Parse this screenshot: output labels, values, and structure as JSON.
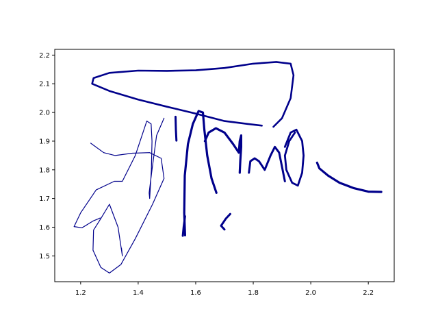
{
  "chart_data": {
    "type": "line",
    "title": "",
    "xlabel": "",
    "ylabel": "",
    "xlim": [
      1.11,
      2.29
    ],
    "ylim": [
      1.41,
      2.22
    ],
    "grid": false,
    "legend": "none",
    "x_ticks": [
      "1.2",
      "1.4",
      "1.6",
      "1.8",
      "2.0",
      "2.2"
    ],
    "x_tick_values": [
      1.2,
      1.4,
      1.6,
      1.8,
      2.0,
      2.2
    ],
    "y_ticks": [
      "1.5",
      "1.6",
      "1.7",
      "1.8",
      "1.9",
      "2.0",
      "2.1",
      "2.2"
    ],
    "y_tick_values": [
      1.5,
      1.6,
      1.7,
      1.8,
      1.9,
      2.0,
      2.1,
      2.2
    ],
    "color": "#00008b",
    "series": [
      {
        "id": "left-loop",
        "width": 1.2,
        "points": [
          [
            1.268,
            1.632
          ],
          [
            1.244,
            1.622
          ],
          [
            1.205,
            1.598
          ],
          [
            1.177,
            1.602
          ],
          [
            1.2,
            1.65
          ],
          [
            1.254,
            1.73
          ],
          [
            1.317,
            1.76
          ],
          [
            1.345,
            1.76
          ],
          [
            1.39,
            1.85
          ],
          [
            1.43,
            1.97
          ],
          [
            1.445,
            1.96
          ],
          [
            1.448,
            1.9
          ],
          [
            1.446,
            1.8
          ],
          [
            1.44,
            1.7
          ],
          [
            1.438,
            1.72
          ],
          [
            1.448,
            1.8
          ],
          [
            1.464,
            1.92
          ],
          [
            1.49,
            1.98
          ]
        ]
      },
      {
        "id": "left-cross",
        "width": 1.2,
        "points": [
          [
            1.235,
            1.893
          ],
          [
            1.28,
            1.86
          ],
          [
            1.32,
            1.85
          ],
          [
            1.38,
            1.858
          ],
          [
            1.44,
            1.86
          ],
          [
            1.48,
            1.84
          ],
          [
            1.49,
            1.77
          ],
          [
            1.45,
            1.68
          ],
          [
            1.39,
            1.56
          ],
          [
            1.34,
            1.47
          ],
          [
            1.3,
            1.44
          ],
          [
            1.27,
            1.46
          ],
          [
            1.243,
            1.52
          ],
          [
            1.245,
            1.59
          ],
          [
            1.27,
            1.63
          ],
          [
            1.3,
            1.68
          ],
          [
            1.33,
            1.6
          ],
          [
            1.345,
            1.5
          ],
          [
            1.342,
            1.527
          ]
        ]
      },
      {
        "id": "top-swash",
        "width": 2.6,
        "points": [
          [
            1.83,
            1.954
          ],
          [
            1.78,
            1.96
          ],
          [
            1.7,
            1.97
          ],
          [
            1.6,
            1.996
          ],
          [
            1.5,
            2.02
          ],
          [
            1.4,
            2.045
          ],
          [
            1.3,
            2.075
          ],
          [
            1.24,
            2.1
          ],
          [
            1.245,
            2.12
          ],
          [
            1.3,
            2.138
          ],
          [
            1.4,
            2.146
          ],
          [
            1.5,
            2.145
          ],
          [
            1.6,
            2.147
          ],
          [
            1.7,
            2.155
          ],
          [
            1.8,
            2.17
          ],
          [
            1.88,
            2.176
          ],
          [
            1.93,
            2.17
          ],
          [
            1.94,
            2.13
          ],
          [
            1.93,
            2.05
          ],
          [
            1.9,
            1.98
          ],
          [
            1.87,
            1.95
          ]
        ]
      },
      {
        "id": "tall-stroke",
        "width": 3.2,
        "points": [
          [
            1.563,
            1.572
          ],
          [
            1.56,
            1.65
          ],
          [
            1.562,
            1.78
          ],
          [
            1.573,
            1.89
          ],
          [
            1.59,
            1.96
          ],
          [
            1.61,
            2.005
          ],
          [
            1.625,
            2.0
          ],
          [
            1.63,
            1.94
          ],
          [
            1.64,
            1.85
          ],
          [
            1.655,
            1.77
          ],
          [
            1.672,
            1.72
          ]
        ]
      },
      {
        "id": "m-loops",
        "width": 3.2,
        "points": [
          [
            1.632,
            1.9
          ],
          [
            1.645,
            1.93
          ],
          [
            1.67,
            1.945
          ],
          [
            1.7,
            1.93
          ],
          [
            1.73,
            1.89
          ],
          [
            1.75,
            1.86
          ],
          [
            1.753,
            1.9
          ],
          [
            1.758,
            1.92
          ],
          [
            1.758,
            1.88
          ],
          [
            1.755,
            1.83
          ],
          [
            1.753,
            1.79
          ]
        ]
      },
      {
        "id": "n-loop",
        "width": 3.0,
        "points": [
          [
            1.785,
            1.79
          ],
          [
            1.79,
            1.83
          ],
          [
            1.805,
            1.84
          ],
          [
            1.82,
            1.83
          ],
          [
            1.84,
            1.8
          ],
          [
            1.86,
            1.85
          ],
          [
            1.875,
            1.88
          ],
          [
            1.89,
            1.86
          ],
          [
            1.9,
            1.81
          ],
          [
            1.91,
            1.76
          ]
        ]
      },
      {
        "id": "d-loop",
        "width": 2.8,
        "points": [
          [
            1.91,
            1.88
          ],
          [
            1.93,
            1.93
          ],
          [
            1.95,
            1.94
          ],
          [
            1.97,
            1.9
          ],
          [
            1.975,
            1.85
          ],
          [
            1.97,
            1.79
          ],
          [
            1.955,
            1.745
          ],
          [
            1.935,
            1.755
          ],
          [
            1.915,
            1.8
          ],
          [
            1.91,
            1.85
          ],
          [
            1.925,
            1.9
          ],
          [
            1.945,
            1.93
          ]
        ]
      },
      {
        "id": "tail",
        "width": 3.2,
        "points": [
          [
            2.022,
            1.825
          ],
          [
            2.03,
            1.805
          ],
          [
            2.06,
            1.78
          ],
          [
            2.1,
            1.755
          ],
          [
            2.15,
            1.736
          ],
          [
            2.2,
            1.724
          ],
          [
            2.245,
            1.723
          ]
        ]
      },
      {
        "id": "dash-1",
        "width": 3.0,
        "points": [
          [
            1.53,
            1.985
          ],
          [
            1.531,
            1.94
          ],
          [
            1.533,
            1.902
          ]
        ]
      },
      {
        "id": "dash-2",
        "width": 3.0,
        "points": [
          [
            1.555,
            1.57
          ],
          [
            1.558,
            1.6
          ],
          [
            1.563,
            1.638
          ]
        ]
      },
      {
        "id": "dash-3",
        "width": 3.0,
        "points": [
          [
            1.7,
            1.592
          ],
          [
            1.688,
            1.605
          ],
          [
            1.705,
            1.63
          ],
          [
            1.72,
            1.646
          ]
        ]
      }
    ]
  }
}
